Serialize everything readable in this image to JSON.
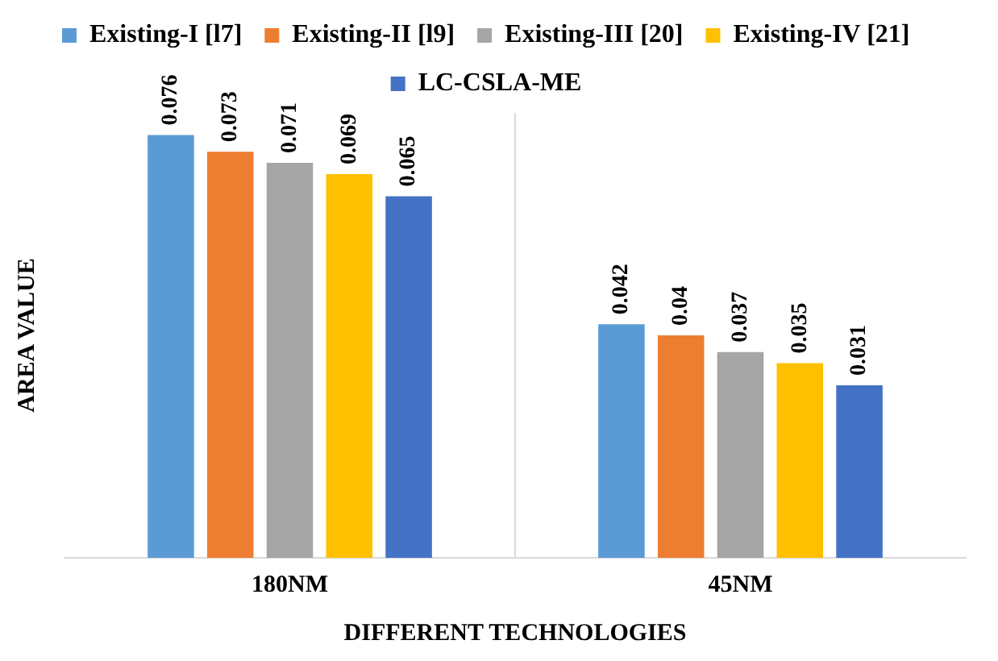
{
  "chart_data": {
    "type": "bar",
    "xlabel": "DIFFERENT TECHNOLOGIES",
    "ylabel": "AREA VALUE",
    "categories": [
      "180NM",
      "45NM"
    ],
    "ylim": [
      0,
      0.08
    ],
    "grid": "x",
    "legend": "top",
    "data_labels": true,
    "tick_labels": "x",
    "series": [
      {
        "name": "Existing-I [l7]",
        "color": "#5b9bd5",
        "values": [
          0.076,
          0.042
        ]
      },
      {
        "name": "Existing-II [l9]",
        "color": "#ed7d31",
        "values": [
          0.073,
          0.04
        ]
      },
      {
        "name": "Existing-III [20]",
        "color": "#a5a5a5",
        "values": [
          0.071,
          0.037
        ]
      },
      {
        "name": "Existing-IV [21]",
        "color": "#ffc000",
        "values": [
          0.069,
          0.035
        ]
      },
      {
        "name": "LC-CSLA-ME",
        "color": "#4472c4",
        "values": [
          0.065,
          0.031
        ]
      }
    ]
  }
}
